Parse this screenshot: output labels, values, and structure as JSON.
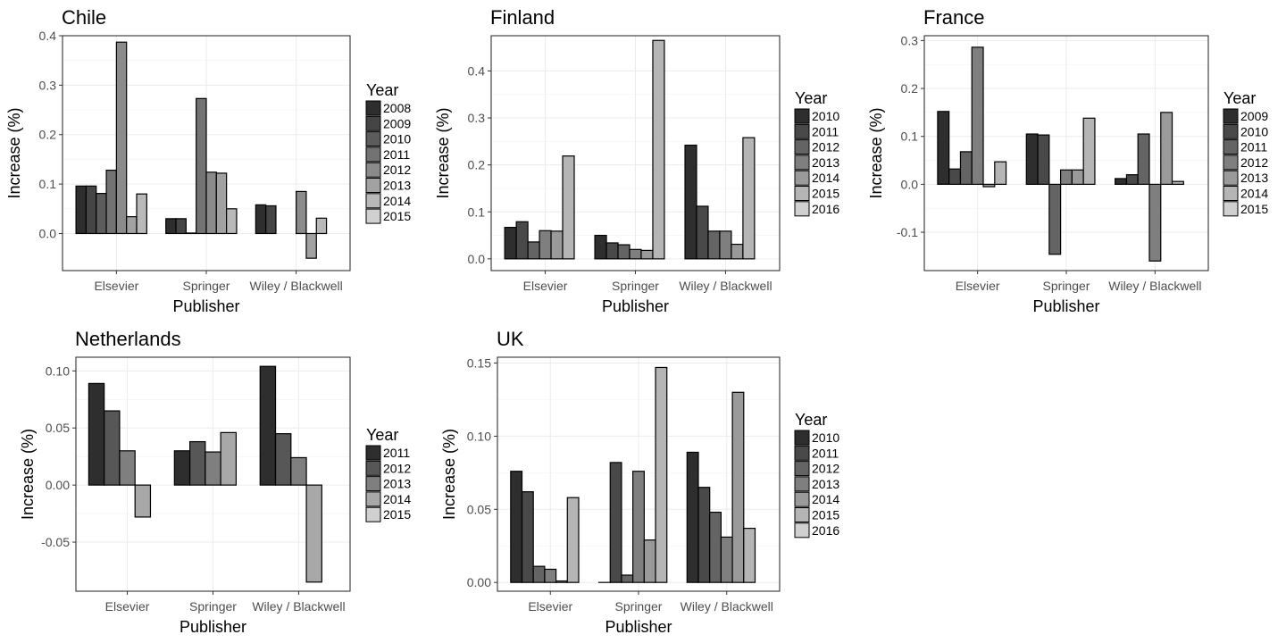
{
  "chart_data": [
    {
      "type": "bar",
      "title": "Chile",
      "xlabel": "Publisher",
      "ylabel": "Increase (%)",
      "ylim": [
        -0.075,
        0.4
      ],
      "yticks": [
        0.0,
        0.1,
        0.2,
        0.3,
        0.4
      ],
      "ytick_labels": [
        "0.0",
        "0.1",
        "0.2",
        "0.3",
        "0.4"
      ],
      "categories": [
        "Elsevier",
        "Springer",
        "Wiley / Blackwell"
      ],
      "legend_title": "Year",
      "legend_position": "right",
      "grid": true,
      "series": [
        {
          "name": "2008",
          "values": [
            0.096,
            0.03,
            0.058
          ]
        },
        {
          "name": "2009",
          "values": [
            0.096,
            0.03,
            0.056
          ]
        },
        {
          "name": "2010",
          "values": [
            0.081,
            0.001,
            null
          ]
        },
        {
          "name": "2011",
          "values": [
            0.128,
            0.273,
            null
          ]
        },
        {
          "name": "2012",
          "values": [
            0.387,
            0.124,
            0.085
          ]
        },
        {
          "name": "2013",
          "values": [
            0.034,
            0.122,
            -0.05
          ]
        },
        {
          "name": "2014",
          "values": [
            0.08,
            0.05,
            0.031
          ]
        },
        {
          "name": "2015",
          "values": [
            null,
            null,
            null
          ]
        }
      ]
    },
    {
      "type": "bar",
      "title": "Finland",
      "xlabel": "Publisher",
      "ylabel": "Increase (%)",
      "ylim": [
        -0.025,
        0.475
      ],
      "yticks": [
        0.0,
        0.1,
        0.2,
        0.3,
        0.4
      ],
      "ytick_labels": [
        "0.0",
        "0.1",
        "0.2",
        "0.3",
        "0.4"
      ],
      "categories": [
        "Elsevier",
        "Springer",
        "Wiley / Blackwell"
      ],
      "legend_title": "Year",
      "legend_position": "right",
      "grid": true,
      "series": [
        {
          "name": "2010",
          "values": [
            0.067,
            0.05,
            0.242
          ]
        },
        {
          "name": "2011",
          "values": [
            0.079,
            0.034,
            0.112
          ]
        },
        {
          "name": "2012",
          "values": [
            0.036,
            0.03,
            0.059
          ]
        },
        {
          "name": "2013",
          "values": [
            0.06,
            0.02,
            0.059
          ]
        },
        {
          "name": "2014",
          "values": [
            0.059,
            0.018,
            0.031
          ]
        },
        {
          "name": "2015",
          "values": [
            0.219,
            0.465,
            0.258
          ]
        },
        {
          "name": "2016",
          "values": [
            null,
            null,
            null
          ]
        }
      ]
    },
    {
      "type": "bar",
      "title": "France",
      "xlabel": "Publisher",
      "ylabel": "Increase (%)",
      "ylim": [
        -0.18,
        0.31
      ],
      "yticks": [
        -0.1,
        0.0,
        0.1,
        0.2,
        0.3
      ],
      "ytick_labels": [
        "-0.1",
        "0.0",
        "0.1",
        "0.2",
        "0.3"
      ],
      "categories": [
        "Elsevier",
        "Springer",
        "Wiley / Blackwell"
      ],
      "legend_title": "Year",
      "legend_position": "right",
      "grid": true,
      "series": [
        {
          "name": "2009",
          "values": [
            0.152,
            0.105,
            0.012
          ]
        },
        {
          "name": "2010",
          "values": [
            0.032,
            0.103,
            0.02
          ]
        },
        {
          "name": "2011",
          "values": [
            0.068,
            -0.146,
            0.105
          ]
        },
        {
          "name": "2012",
          "values": [
            0.286,
            0.03,
            -0.16
          ]
        },
        {
          "name": "2013",
          "values": [
            -0.005,
            0.03,
            0.15
          ]
        },
        {
          "name": "2014",
          "values": [
            0.047,
            0.138,
            0.006
          ]
        },
        {
          "name": "2015",
          "values": [
            null,
            null,
            null
          ]
        }
      ]
    },
    {
      "type": "bar",
      "title": "Netherlands",
      "xlabel": "Publisher",
      "ylabel": "Increase (%)",
      "ylim": [
        -0.093,
        0.112
      ],
      "yticks": [
        -0.05,
        0.0,
        0.05,
        0.1
      ],
      "ytick_labels": [
        "-0.05",
        "0.00",
        "0.05",
        "0.10"
      ],
      "categories": [
        "Elsevier",
        "Springer",
        "Wiley / Blackwell"
      ],
      "legend_title": "Year",
      "legend_position": "right",
      "grid": true,
      "series": [
        {
          "name": "2011",
          "values": [
            0.089,
            0.03,
            0.104
          ]
        },
        {
          "name": "2012",
          "values": [
            0.065,
            0.038,
            0.045
          ]
        },
        {
          "name": "2013",
          "values": [
            0.03,
            0.029,
            0.024
          ]
        },
        {
          "name": "2014",
          "values": [
            -0.028,
            0.046,
            -0.085
          ]
        },
        {
          "name": "2015",
          "values": [
            null,
            null,
            null
          ]
        }
      ]
    },
    {
      "type": "bar",
      "title": "UK",
      "xlabel": "Publisher",
      "ylabel": "Increase (%)",
      "ylim": [
        -0.006,
        0.154
      ],
      "yticks": [
        0.0,
        0.05,
        0.1,
        0.15
      ],
      "ytick_labels": [
        "0.00",
        "0.05",
        "0.10",
        "0.15"
      ],
      "categories": [
        "Elsevier",
        "Springer",
        "Wiley / Blackwell"
      ],
      "legend_title": "Year",
      "legend_position": "right",
      "grid": true,
      "series": [
        {
          "name": "2010",
          "values": [
            0.076,
            0.0,
            0.089
          ]
        },
        {
          "name": "2011",
          "values": [
            0.062,
            0.082,
            0.065
          ]
        },
        {
          "name": "2012",
          "values": [
            0.011,
            0.005,
            0.048
          ]
        },
        {
          "name": "2013",
          "values": [
            0.009,
            0.076,
            0.031
          ]
        },
        {
          "name": "2014",
          "values": [
            0.001,
            0.029,
            0.13
          ]
        },
        {
          "name": "2015",
          "values": [
            0.058,
            0.147,
            0.037
          ]
        },
        {
          "name": "2016",
          "values": [
            null,
            null,
            null
          ]
        }
      ]
    }
  ]
}
